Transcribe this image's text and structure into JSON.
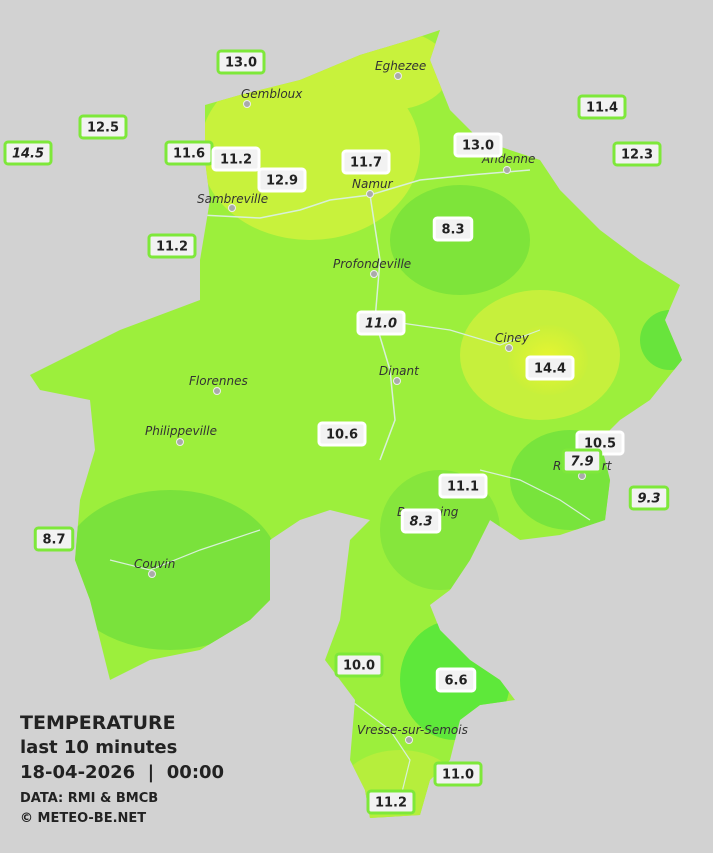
{
  "legend": {
    "title": "TEMPERATURE",
    "period": "last 10 minutes",
    "datetime": "18-04-2026  |  00:00",
    "source": "DATA: RMI & BMCB",
    "copyright": "© METEO-BE.NET"
  },
  "cities": [
    "Eghezee",
    "Gembloux",
    "Andenne",
    "Namur",
    "Sambreville",
    "Profondeville",
    "Ciney",
    "Dinant",
    "Florennes",
    "Philippeville",
    "Rochefort",
    "Beauraing",
    "Couvin",
    "Vresse-sur-Semois"
  ],
  "stations": [
    {
      "label": "13.0"
    },
    {
      "label": "12.5"
    },
    {
      "label": "14.5",
      "italic": true
    },
    {
      "label": "11.6"
    },
    {
      "label": "11.2"
    },
    {
      "label": "12.9"
    },
    {
      "label": "11.7"
    },
    {
      "label": "13.0"
    },
    {
      "label": "11.4"
    },
    {
      "label": "12.3"
    },
    {
      "label": "11.2"
    },
    {
      "label": "8.3"
    },
    {
      "label": "11.0",
      "italic": true
    },
    {
      "label": "14.4"
    },
    {
      "label": "10.6"
    },
    {
      "label": "10.5"
    },
    {
      "label": "7.9",
      "italic": true
    },
    {
      "label": "9.3",
      "italic": true
    },
    {
      "label": "11.1"
    },
    {
      "label": "8.3",
      "italic": true
    },
    {
      "label": "8.7"
    },
    {
      "label": "10.0"
    },
    {
      "label": "6.6"
    },
    {
      "label": "11.0"
    },
    {
      "label": "11.2"
    }
  ]
}
